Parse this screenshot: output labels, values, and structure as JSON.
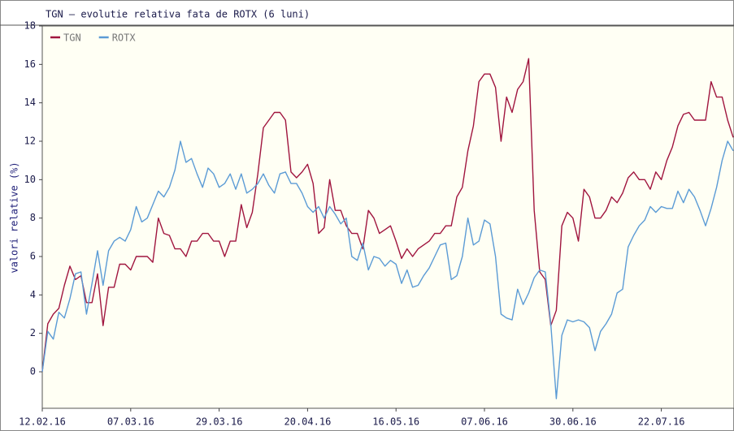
{
  "chart_data": {
    "type": "line",
    "title": "TGN – evolutie relativa fata de ROTX (6 luni)",
    "y_label": "valori relative (%)",
    "categories": [
      "12.02.16",
      null,
      null,
      null,
      null,
      null,
      null,
      null,
      null,
      null,
      null,
      null,
      null,
      null,
      null,
      null,
      "07.03.16",
      null,
      null,
      null,
      null,
      null,
      null,
      null,
      null,
      null,
      null,
      null,
      null,
      null,
      null,
      null,
      "29.03.16",
      null,
      null,
      null,
      null,
      null,
      null,
      null,
      null,
      null,
      null,
      null,
      null,
      null,
      null,
      null,
      "20.04.16",
      null,
      null,
      null,
      null,
      null,
      null,
      null,
      null,
      null,
      null,
      null,
      null,
      null,
      null,
      null,
      "16.05.16",
      null,
      null,
      null,
      null,
      null,
      null,
      null,
      null,
      null,
      null,
      null,
      null,
      null,
      null,
      null,
      "07.06.16",
      null,
      null,
      null,
      null,
      null,
      null,
      null,
      null,
      null,
      null,
      null,
      null,
      null,
      null,
      null,
      "30.06.16",
      null,
      null,
      null,
      null,
      null,
      null,
      null,
      null,
      null,
      null,
      null,
      null,
      null,
      null,
      null,
      "22.07.16",
      null,
      null,
      null,
      null,
      null,
      null,
      null,
      null,
      null,
      null,
      null,
      null,
      null
    ],
    "series": [
      {
        "name": "TGN",
        "color": "#a0153e",
        "values": [
          0,
          2.5,
          3,
          3.3,
          4.5,
          5.5,
          4.8,
          5,
          3.6,
          3.6,
          5.1,
          2.4,
          4.4,
          4.4,
          5.6,
          5.6,
          5.3,
          6,
          6,
          6,
          5.7,
          8,
          7.2,
          7.1,
          6.4,
          6.4,
          6,
          6.8,
          6.8,
          7.2,
          7.2,
          6.8,
          6.8,
          6,
          6.8,
          6.8,
          8.7,
          7.5,
          8.3,
          10.3,
          12.7,
          13.1,
          13.5,
          13.5,
          13.1,
          10.4,
          10.1,
          10.4,
          10.8,
          9.8,
          7.2,
          7.5,
          10,
          8.4,
          8.4,
          7.6,
          7.2,
          7.2,
          6.4,
          8.4,
          8,
          7.2,
          7.4,
          7.6,
          6.8,
          5.9,
          6.4,
          6,
          6.4,
          6.6,
          6.8,
          7.2,
          7.2,
          7.6,
          7.6,
          9.1,
          9.6,
          11.5,
          12.8,
          15.1,
          15.5,
          15.5,
          14.8,
          12,
          14.3,
          13.5,
          14.7,
          15.1,
          16.3,
          8.4,
          5.2,
          4.8,
          2.4,
          3.2,
          7.6,
          8.3,
          8,
          6.8,
          9.5,
          9.1,
          8,
          8,
          8.4,
          9.1,
          8.8,
          9.3,
          10.1,
          10.4,
          10,
          10,
          9.5,
          10.4,
          10,
          11,
          11.7,
          12.8,
          13.4,
          13.5,
          13.1,
          13.1,
          13.1,
          15.1,
          14.3,
          14.3,
          13.1,
          12.2
        ]
      },
      {
        "name": "ROTX",
        "color": "#5b9bd5",
        "values": [
          0,
          2.1,
          1.7,
          3.1,
          2.8,
          3.8,
          5.1,
          5.2,
          3,
          4.6,
          6.3,
          4.5,
          6.3,
          6.8,
          7,
          6.8,
          7.4,
          8.6,
          7.8,
          8,
          8.7,
          9.4,
          9.1,
          9.6,
          10.5,
          12,
          10.9,
          11.1,
          10.3,
          9.6,
          10.6,
          10.3,
          9.6,
          9.8,
          10.3,
          9.5,
          10.3,
          9.3,
          9.5,
          9.8,
          10.3,
          9.7,
          9.3,
          10.3,
          10.4,
          9.8,
          9.8,
          9.3,
          8.6,
          8.3,
          8.6,
          8,
          8.6,
          8.2,
          7.7,
          8,
          6,
          5.8,
          6.7,
          5.3,
          6,
          5.9,
          5.5,
          5.8,
          5.6,
          4.6,
          5.3,
          4.4,
          4.5,
          5,
          5.4,
          6,
          6.6,
          6.7,
          4.8,
          5,
          6,
          8,
          6.6,
          6.8,
          7.9,
          7.7,
          6,
          3,
          2.8,
          2.7,
          4.3,
          3.5,
          4.1,
          4.9,
          5.3,
          5.2,
          2.5,
          -1.4,
          1.9,
          2.7,
          2.6,
          2.7,
          2.6,
          2.3,
          1.1,
          2.1,
          2.5,
          3,
          4.1,
          4.3,
          6.5,
          7.1,
          7.6,
          7.9,
          8.6,
          8.3,
          8.6,
          8.5,
          8.5,
          9.4,
          8.8,
          9.5,
          9.1,
          8.4,
          7.6,
          8.5,
          9.6,
          11,
          12,
          11.5
        ]
      }
    ],
    "ylim": [
      -1.9,
      18
    ],
    "yticks": [
      0,
      2,
      4,
      6,
      8,
      10,
      12,
      14,
      16,
      18
    ],
    "legend": "upper left",
    "grid": false
  }
}
